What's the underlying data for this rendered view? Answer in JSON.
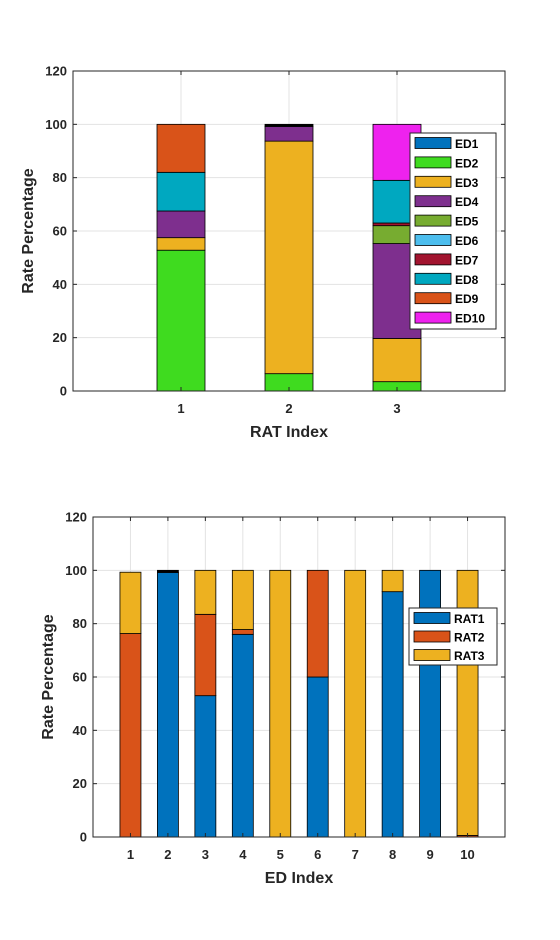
{
  "chart_data": [
    {
      "type": "bar",
      "stacked": true,
      "title": "",
      "xlabel": "RAT Index",
      "ylabel": "Rate Percentage",
      "categories": [
        "1",
        "2",
        "3"
      ],
      "xlim": [
        0,
        4
      ],
      "ylim": [
        0,
        120
      ],
      "yticks": [
        "0",
        "20",
        "40",
        "60",
        "80",
        "100",
        "120"
      ],
      "grid": true,
      "legend_position": "right",
      "series": [
        {
          "name": "ED1",
          "color": "#0072BD",
          "values": [
            0,
            0,
            0
          ]
        },
        {
          "name": "ED2",
          "color": "#3FDB1F",
          "values": [
            52.8,
            6.5,
            3.5
          ]
        },
        {
          "name": "ED3",
          "color": "#EDB120",
          "values": [
            4.7,
            87.2,
            16.2
          ]
        },
        {
          "name": "ED4",
          "color": "#7E2F8E",
          "values": [
            10.0,
            5.5,
            35.6
          ]
        },
        {
          "name": "ED5",
          "color": "#77AC30",
          "values": [
            0,
            0,
            6.7
          ]
        },
        {
          "name": "ED6",
          "color": "#4DBEEE",
          "values": [
            0,
            0,
            0
          ]
        },
        {
          "name": "ED7",
          "color": "#A2142F",
          "values": [
            0,
            0,
            1.0
          ]
        },
        {
          "name": "ED8",
          "color": "#00A8C0",
          "values": [
            14.5,
            0,
            16.0
          ]
        },
        {
          "name": "ED9",
          "color": "#D95319",
          "values": [
            18.0,
            0,
            0
          ]
        },
        {
          "name": "ED10",
          "color": "#EE22EE",
          "values": [
            0,
            0,
            21.0
          ]
        },
        {
          "name": "",
          "color": "#000000",
          "values": [
            0,
            0.8,
            0
          ],
          "legend": false
        }
      ]
    },
    {
      "type": "bar",
      "stacked": true,
      "title": "",
      "xlabel": "ED Index",
      "ylabel": "Rate Percentage",
      "categories": [
        "1",
        "2",
        "3",
        "4",
        "5",
        "6",
        "7",
        "8",
        "9",
        "10"
      ],
      "xlim": [
        0,
        11
      ],
      "ylim": [
        0,
        120
      ],
      "yticks": [
        "0",
        "20",
        "40",
        "60",
        "80",
        "100",
        "120"
      ],
      "grid": true,
      "legend_position": "right",
      "series": [
        {
          "name": "RAT1",
          "color": "#0072BD",
          "values": [
            0,
            99.2,
            53,
            76,
            0,
            60,
            0,
            92,
            100,
            0
          ]
        },
        {
          "name": "RAT2",
          "color": "#D95319",
          "values": [
            76.3,
            0,
            30.5,
            1.8,
            0,
            40,
            0,
            0,
            0,
            0.6
          ]
        },
        {
          "name": "RAT3",
          "color": "#EDB120",
          "values": [
            23,
            0,
            16.5,
            22.2,
            100,
            0,
            100,
            8,
            0,
            99.4
          ]
        },
        {
          "name": "",
          "color": "#000000",
          "values": [
            0,
            0.8,
            0,
            0,
            0,
            0,
            0,
            0,
            0,
            0
          ],
          "legend": false
        }
      ]
    }
  ]
}
